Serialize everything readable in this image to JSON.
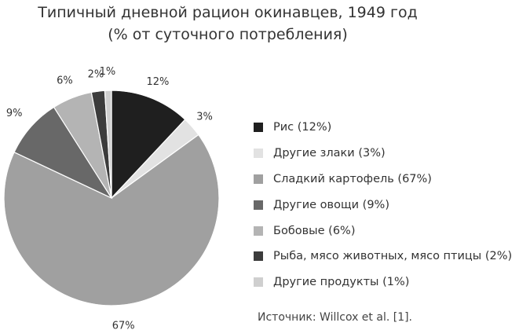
{
  "chart_data": {
    "type": "pie",
    "title": "Типичный дневной рацион окинавцев, 1949 год",
    "subtitle": "(% от суточного потребления)",
    "slices": [
      {
        "label": "Рис (12%)",
        "value": 12,
        "value_label": "12%",
        "color": "#1f1f1f"
      },
      {
        "label": "Другие злаки (3%)",
        "value": 3,
        "value_label": "3%",
        "color": "#e2e2e2"
      },
      {
        "label": "Сладкий картофель (67%)",
        "value": 67,
        "value_label": "67%",
        "color": "#a0a0a0"
      },
      {
        "label": "Другие овощи (9%)",
        "value": 9,
        "value_label": "9%",
        "color": "#686868"
      },
      {
        "label": "Бобовые (6%)",
        "value": 6,
        "value_label": "6%",
        "color": "#b4b4b4"
      },
      {
        "label": "Рыба, мясо животных, мясо птицы (2%)",
        "value": 2,
        "value_label": "2%",
        "color": "#3c3c3c"
      },
      {
        "label": "Другие продукты (1%)",
        "value": 1,
        "value_label": "1%",
        "color": "#cfcfcf"
      }
    ],
    "legend_position": "right",
    "start": "12 o'clock, clockwise"
  },
  "source": "Источник: Willcox et al. [1]."
}
